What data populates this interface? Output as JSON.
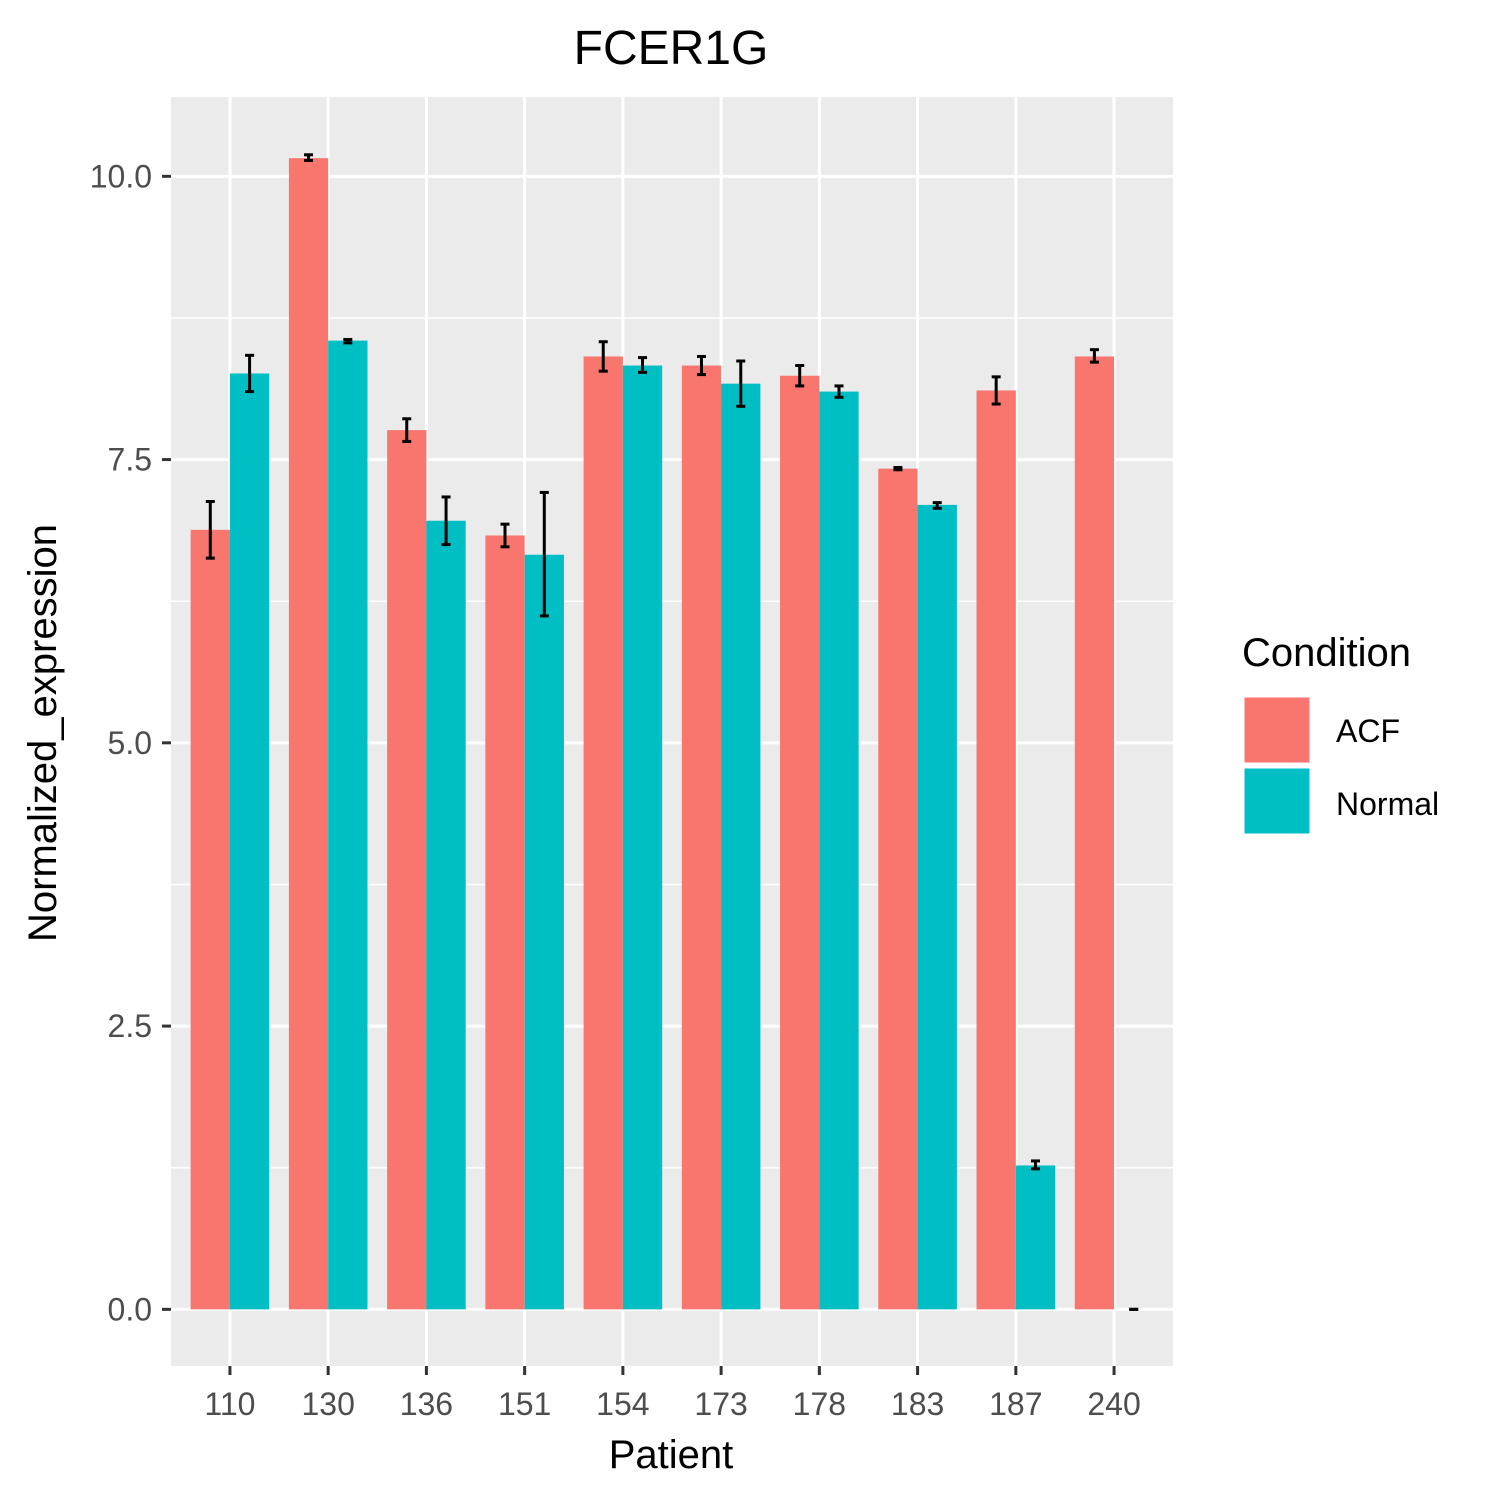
{
  "chart_data": {
    "type": "bar",
    "title": "FCER1G",
    "xlabel": "Patient",
    "ylabel": "Normalized_expression",
    "categories": [
      "110",
      "130",
      "136",
      "151",
      "154",
      "173",
      "178",
      "183",
      "187",
      "240"
    ],
    "ylim": [
      -0.5,
      10.7
    ],
    "yticks": [
      0.0,
      2.5,
      5.0,
      7.5,
      10.0
    ],
    "ytick_labels": [
      "0.0",
      "2.5",
      "5.0",
      "7.5",
      "10.0"
    ],
    "grid": true,
    "legend": {
      "title": "Condition",
      "position": "right"
    },
    "series": [
      {
        "name": "ACF",
        "color": "#F8766D",
        "values": [
          6.88,
          10.16,
          7.76,
          6.83,
          8.41,
          8.33,
          8.24,
          7.42,
          8.11,
          8.41
        ],
        "err_low": [
          6.63,
          10.14,
          7.66,
          6.73,
          8.28,
          8.25,
          8.15,
          7.41,
          7.99,
          8.36
        ],
        "err_high": [
          7.13,
          10.19,
          7.86,
          6.93,
          8.54,
          8.41,
          8.33,
          7.43,
          8.23,
          8.47
        ]
      },
      {
        "name": "Normal",
        "color": "#00BFC4",
        "values": [
          8.26,
          8.55,
          6.96,
          6.66,
          8.33,
          8.17,
          8.1,
          7.1,
          1.27,
          0.0
        ],
        "err_low": [
          8.1,
          8.53,
          6.75,
          6.12,
          8.27,
          7.97,
          8.05,
          7.07,
          1.24,
          0.0
        ],
        "err_high": [
          8.42,
          8.56,
          7.17,
          7.21,
          8.4,
          8.37,
          8.15,
          7.12,
          1.31,
          0.0
        ]
      }
    ]
  }
}
